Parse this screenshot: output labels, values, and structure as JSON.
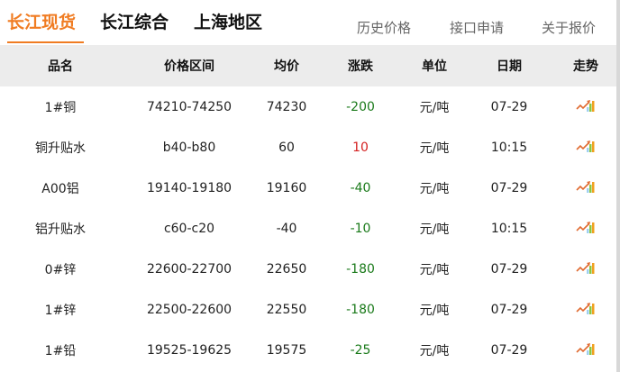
{
  "tabs": [
    "长江现货",
    "长江综合",
    "上海地区"
  ],
  "links": [
    "历史价格",
    "接口申请",
    "关于报价"
  ],
  "columns": [
    "品名",
    "价格区间",
    "均价",
    "涨跌",
    "单位",
    "日期",
    "走势"
  ],
  "rows": [
    [
      "1#铜",
      "74210-74250",
      "74230",
      "-200",
      "元/吨",
      "07-29"
    ],
    [
      "铜升贴水",
      "b40-b80",
      "60",
      "10",
      "元/吨",
      "10:15"
    ],
    [
      "A00铝",
      "19140-19180",
      "19160",
      "-40",
      "元/吨",
      "07-29"
    ],
    [
      "铝升贴水",
      "c60-c20",
      "-40",
      "-10",
      "元/吨",
      "10:15"
    ],
    [
      "0#锌",
      "22600-22700",
      "22650",
      "-180",
      "元/吨",
      "07-29"
    ],
    [
      "1#锌",
      "22500-22600",
      "22550",
      "-180",
      "元/吨",
      "07-29"
    ],
    [
      "1#铅",
      "19525-19625",
      "19575",
      "-25",
      "元/吨",
      "07-29"
    ]
  ],
  "colors": {
    "accent": "#f07c22",
    "down": "#1a7a1a",
    "up": "#d42020"
  },
  "trend_icon": "trend-chart-icon"
}
